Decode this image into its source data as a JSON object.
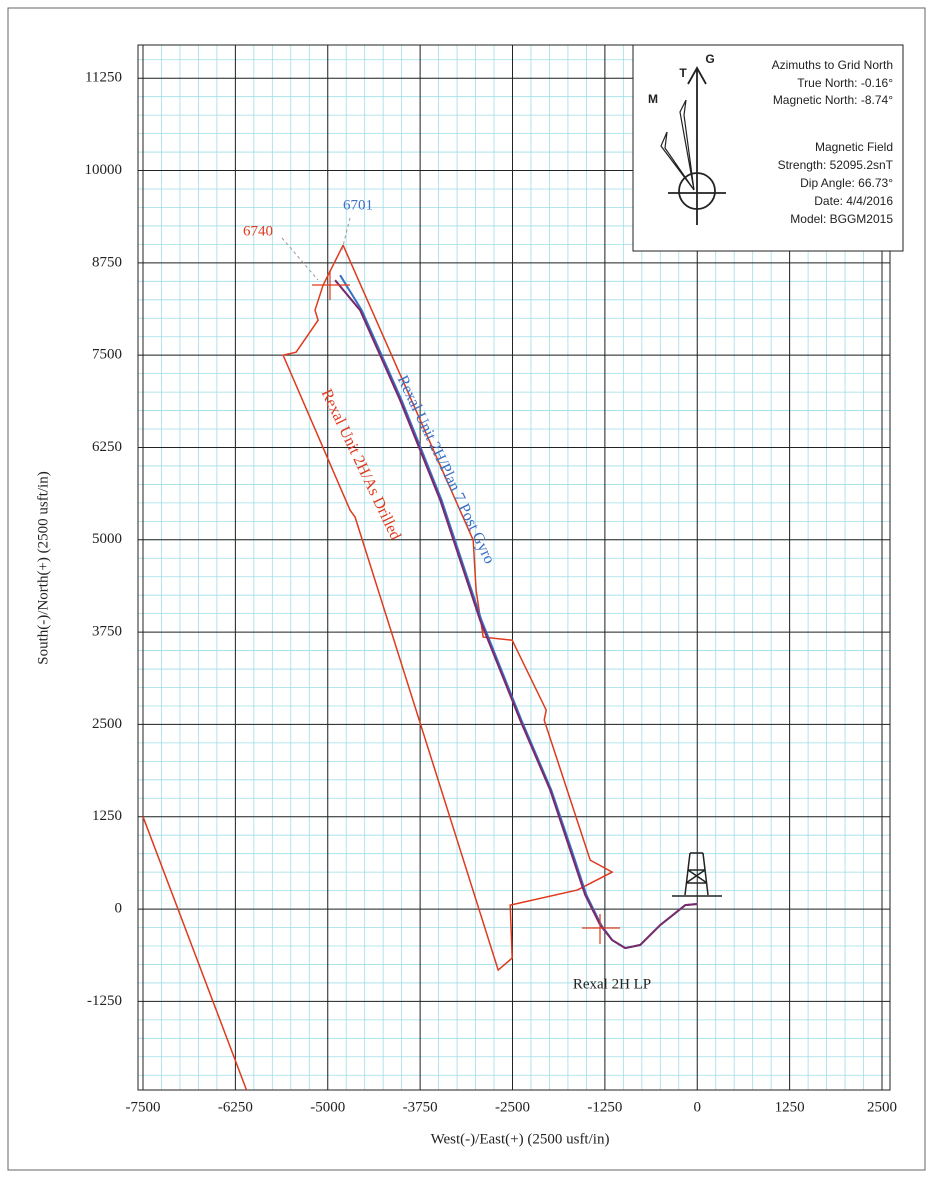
{
  "chart_data": {
    "type": "line",
    "xlabel": "West(-)/East(+) (2500 usft/in)",
    "ylabel": "South(-)/North(+) (2500 usft/in)",
    "xlim": [
      -7500,
      2500
    ],
    "xticks": [
      -7500,
      -6250,
      -5000,
      -3750,
      -2500,
      -1250,
      0,
      1250,
      2500
    ],
    "ylim": [
      -2450,
      11700
    ],
    "yticks": [
      -1250,
      0,
      1250,
      2500,
      3750,
      5000,
      6250,
      7500,
      8750,
      10000,
      11250
    ],
    "grid": true,
    "series": [
      {
        "name": "Rexal Unit 2H/Plan 7 Post Gyro",
        "color": "#3a6fc4",
        "x": [
          0,
          -162,
          -501,
          -772,
          -975,
          -1151,
          -1300,
          -1500,
          -1700,
          -1975,
          -2380,
          -2920,
          -3460,
          -4000,
          -4540,
          -4833
        ],
        "y": [
          68,
          54,
          -217,
          -487,
          -528,
          -420,
          -217,
          190,
          799,
          1611,
          2559,
          3912,
          5537,
          6890,
          8109,
          8583
        ]
      },
      {
        "name": "Rexal Unit 2H/As Drilled",
        "color": "#7a2a6a",
        "x": [
          0,
          -162,
          -501,
          -772,
          -975,
          -1151,
          -1313,
          -1516,
          -1719,
          -1990,
          -2396,
          -2938,
          -3479,
          -4021,
          -4562,
          -4900
        ],
        "y": [
          68,
          54,
          -217,
          -487,
          -528,
          -420,
          -217,
          190,
          799,
          1611,
          2559,
          3912,
          5537,
          6890,
          8109,
          8515
        ]
      },
      {
        "color": "#e03a1e",
        "x": [
          -4792,
          -3032,
          -2992,
          -2897,
          -2504,
          -2044,
          -2071,
          -1448,
          -1151,
          -1624,
          -2531,
          -2504,
          -2694,
          -4630,
          -4697,
          -5604,
          -5428,
          -5131,
          -5172,
          -5063,
          -4792
        ],
        "y": [
          8989,
          4995,
          4318,
          3682,
          3641,
          2694,
          2559,
          663,
          501,
          257,
          54,
          -663,
          -826,
          5307,
          5401,
          7500,
          7540,
          7973,
          8109,
          8447,
          8989
        ]
      },
      {
        "color": "#e03a1e",
        "x": [
          -7500,
          -6100
        ],
        "y": [
          1250,
          -2450
        ]
      }
    ],
    "annotations": [
      "6740",
      "6701",
      "Rexal 2H LP"
    ],
    "legend": {
      "lines": [
        "Azimuths to Grid North",
        "True North: -0.16°",
        "Magnetic North: -8.74°",
        "Magnetic Field",
        "Strength: 52095.2snT",
        "Dip Angle: 66.73°",
        "Date: 4/4/2016",
        "Model: BGGM2015"
      ],
      "compass": [
        "G",
        "T",
        "M"
      ]
    }
  }
}
